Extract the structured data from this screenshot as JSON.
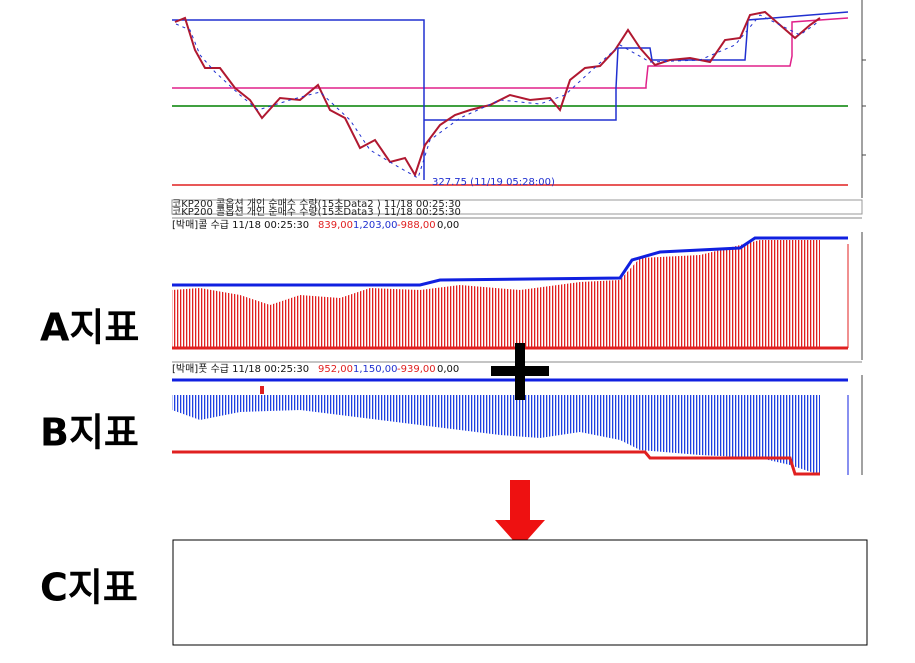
{
  "main_chart": {
    "annotation": "327.75 (11/19 05:28:00)",
    "header_rows": [
      "코KP200 콜옵션 개인 순매수 수량(15초Data2 ) 11/18 00:25:30",
      "코KP200 콜옵션 개인 순매수 수량(15초Data3 ) 11/18 00:25:30"
    ]
  },
  "panel_a": {
    "title": "[박매]콜 수급  11/18 00:25:30",
    "values": [
      "839,00",
      "1,203,00",
      "-988,00",
      "0,00"
    ]
  },
  "panel_b": {
    "title": "[박매]풋 수급  11/18 00:25:30",
    "values": [
      "952,00",
      "1,150,00",
      "-939,00",
      "0,00"
    ]
  },
  "labels": {
    "a": "A지표",
    "b": "B지표",
    "c": "C지표"
  }
}
